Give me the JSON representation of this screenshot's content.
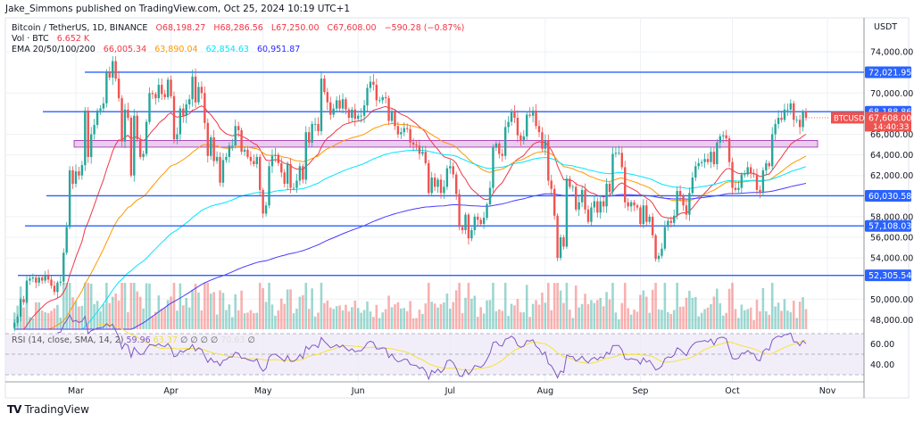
{
  "header": {
    "publisher": "Jake_Simmons published on TradingView.com, Oct 25, 2024 10:19 UTC+1",
    "symbol": "Bitcoin / TetherUS, 1D, BINANCE",
    "open": "O68,198.27",
    "high": "H68,286.56",
    "low": "L67,250.00",
    "close": "C67,608.00",
    "change": "−590.28 (−0.87%)",
    "volume_label": "Vol · BTC",
    "volume_value": "6.652 K",
    "ema_label": "EMA 20/50/100/200",
    "ema20": "66,005.34",
    "ema50": "63,890.04",
    "ema100": "62,854.63",
    "ema200": "60,951.87"
  },
  "rsi_legend": {
    "label": "RSI (14, close, SMA, 14, 2)",
    "rsi": "59.96",
    "rsi_ma": "63.37",
    "empty1": "∅",
    "empty2": "∅",
    "empty3": "∅",
    "empty4": "∅",
    "upper": "70.63",
    "empty5": "∅"
  },
  "price_axis": {
    "currency": "USDT",
    "current_symbol": "BTCUSDT",
    "current_price": "67,608.00",
    "countdown": "14:40:33"
  },
  "footer": {
    "brand": "TradingView",
    "logo_icon": "tradingview-logo-icon"
  },
  "colors": {
    "up": "#26a69a",
    "down": "#ef5350",
    "level_line": "#2962ff",
    "zone": "#e1bee7",
    "ema20": "#f23645",
    "ema50": "#ff9800",
    "ema100": "#00e5ff",
    "ema200": "#4a3aff",
    "rsi": "#7e57c2",
    "rsi_ma": "#f5e23a"
  },
  "chart_data": {
    "type": "candlestick",
    "title": "Bitcoin / TetherUS, 1D, BINANCE",
    "x_range": [
      "2024-02-10",
      "2024-10-25"
    ],
    "xticks": [
      "Mar",
      "Apr",
      "May",
      "Jun",
      "Jul",
      "Aug",
      "Sep",
      "Oct",
      "Nov"
    ],
    "yticks": [
      "74,000.00",
      "70,000.00",
      "66,000.00",
      "64,000.00",
      "62,000.00",
      "58,000.00",
      "56,000.00",
      "54,000.00",
      "50,000.00",
      "48,000.00"
    ],
    "ytick_values": [
      74000,
      70000,
      66000,
      64000,
      62000,
      58000,
      56000,
      54000,
      50000,
      48000
    ],
    "rsi_ticks": [
      "60.00",
      "40.00"
    ],
    "rsi_tick_values": [
      60,
      40
    ],
    "ylim": [
      47000,
      75500
    ],
    "grid": true,
    "levels": [
      {
        "value": 72021.95,
        "label": "72,021.95"
      },
      {
        "value": 68188.86,
        "label": "68,188.86"
      },
      {
        "value": 60030.58,
        "label": "60,030.58"
      },
      {
        "value": 57108.03,
        "label": "57,108.03"
      },
      {
        "value": 52305.54,
        "label": "52,305.54"
      }
    ],
    "zone": [
      64750,
      65400
    ],
    "closes": [
      47700,
      48300,
      50000,
      49700,
      51800,
      52000,
      52100,
      51600,
      52100,
      51800,
      52300,
      51900,
      51300,
      50700,
      51600,
      51700,
      54500,
      57000,
      62500,
      61200,
      62400,
      62000,
      63000,
      68300,
      63800,
      66000,
      66900,
      68300,
      68500,
      69000,
      72100,
      71500,
      73100,
      71400,
      69500,
      65300,
      68400,
      67600,
      62000,
      67800,
      65500,
      63800,
      64100,
      67200,
      70000,
      69900,
      69500,
      70800,
      69900,
      69600,
      71300,
      69700,
      65500,
      66000,
      68500,
      67800,
      68900,
      69400,
      71600,
      69100,
      70600,
      70000,
      67100,
      63900,
      65700,
      63400,
      63800,
      61300,
      63500,
      63800,
      64900,
      64900,
      66800,
      66400,
      64300,
      64500,
      63800,
      63400,
      63100,
      63800,
      60600,
      58300,
      59100,
      62900,
      63900,
      64000,
      63200,
      62300,
      61200,
      63100,
      60800,
      60800,
      61500,
      62900,
      61600,
      66200,
      65200,
      67000,
      67000,
      66300,
      71400,
      70100,
      69100,
      67900,
      68500,
      69300,
      68500,
      69400,
      68400,
      67600,
      68400,
      67500,
      67800,
      67800,
      68800,
      70500,
      71100,
      70800,
      69300,
      69300,
      69600,
      69500,
      67300,
      68200,
      66800,
      66000,
      66200,
      66600,
      66500,
      65200,
      65000,
      64900,
      64100,
      64300,
      63200,
      60300,
      61800,
      60900,
      61600,
      60300,
      60900,
      62700,
      62900,
      62100,
      60200,
      57000,
      56700,
      58200,
      55900,
      56700,
      58000,
      57700,
      57300,
      57900,
      59200,
      60800,
      64700,
      65100,
      64100,
      63900,
      66700,
      67200,
      68200,
      67600,
      65900,
      65400,
      65800,
      67900,
      67800,
      68300,
      66800,
      66200,
      64600,
      65400,
      61500,
      60700,
      58100,
      54000,
      56000,
      55100,
      61700,
      60900,
      60900,
      58700,
      59400,
      60600,
      58700,
      57500,
      58900,
      59500,
      58400,
      59500,
      59000,
      61200,
      60400,
      64100,
      64200,
      64200,
      62800,
      59400,
      59000,
      59400,
      59100,
      58900,
      57300,
      59100,
      57500,
      58000,
      56200,
      53900,
      54200,
      54900,
      57000,
      57600,
      57400,
      58100,
      60500,
      60000,
      59100,
      58200,
      60300,
      61800,
      62900,
      63200,
      63300,
      63600,
      63300,
      64300,
      63100,
      65200,
      65800,
      65900,
      65600,
      63300,
      60800,
      60600,
      60800,
      62100,
      62100,
      62800,
      62200,
      62100,
      60600,
      60300,
      62500,
      63200,
      62900,
      66000,
      67000,
      67600,
      67400,
      68400,
      68400,
      69000,
      67400,
      67400,
      66700,
      68200,
      67608
    ]
  }
}
